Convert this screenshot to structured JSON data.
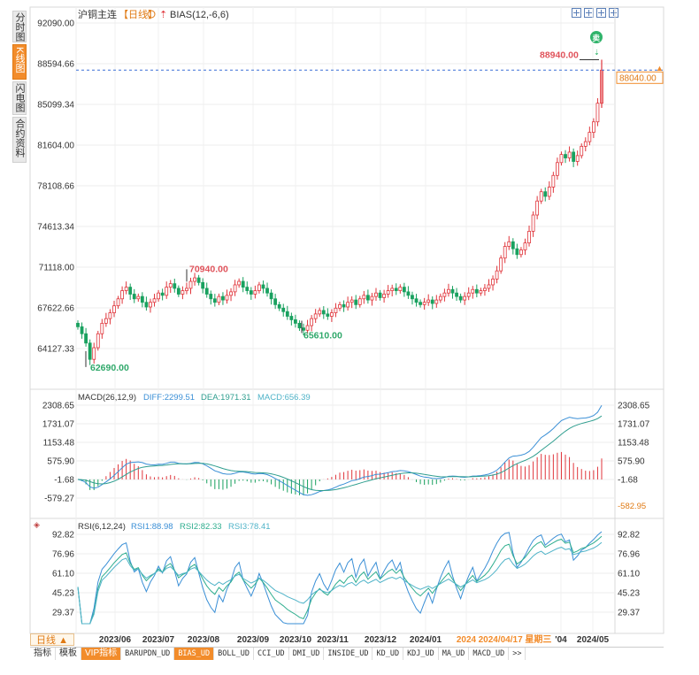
{
  "left_tabs": {
    "time": "分时图",
    "kline": "K线图",
    "flash": "闪电图",
    "contract": "合约资料"
  },
  "header": {
    "symbol": "沪铜主连",
    "period": "【日线】",
    "indicator": "BIAS(12,-6,6)"
  },
  "main_axis": {
    "ticks": [
      "92090.00",
      "88594.66",
      "85099.34",
      "81604.00",
      "78108.66",
      "74613.34",
      "71118.00",
      "67622.66",
      "64127.33"
    ],
    "tick_values": [
      92090,
      88594.66,
      85099.34,
      81604,
      78108.66,
      74613.34,
      71118,
      67622.66,
      64127.33
    ],
    "current_price": "88040.00",
    "current_value": 88040
  },
  "annotations": {
    "high": "88940.00",
    "mid_high": "70940.00",
    "low": "62690.00",
    "mid_low": "65610.00",
    "sell_badge": "卖"
  },
  "macd": {
    "title": "MACD(26,12,9)",
    "diff": "DIFF:2299.51",
    "dea": "DEA:1971.31",
    "macd": "MACD:656.39",
    "ticks": [
      "2308.65",
      "1731.07",
      "1153.48",
      "575.90",
      "-1.68",
      "-579.27"
    ],
    "tick_values": [
      2308.65,
      1731.07,
      1153.48,
      575.9,
      -1.68,
      -579.27
    ],
    "right_ticks": [
      "2308.65",
      "1731.07",
      "1153.48",
      "575.90",
      "-1.68",
      "-579.27"
    ],
    "current": "-582.95"
  },
  "rsi": {
    "title": "RSI(6,12,24)",
    "rsi1": "RSI1:88.98",
    "rsi2": "RSI2:82.33",
    "rsi3": "RSI3:78.41",
    "ticks": [
      "92.82",
      "76.96",
      "61.10",
      "45.23",
      "29.37"
    ],
    "tick_values": [
      92.82,
      76.96,
      61.1,
      45.23,
      29.37
    ]
  },
  "x_axis": {
    "labels": [
      "2023/06",
      "2023/07",
      "2023/08",
      "2023/09",
      "2023/10",
      "2023/11",
      "2023/12",
      "2024/01",
      "2024",
      "2024/04/17 星期三",
      "'04",
      "2024/05"
    ]
  },
  "period_tab": "日线 ▲",
  "bottom_tabs": [
    "指标",
    "模板",
    "VIP指标",
    "BARUPDN_UD",
    "BIAS_UD",
    "BOLL_UD",
    "CCI_UD",
    "DMI_UD",
    "INSIDE_UD",
    "KD_UD",
    "KDJ_UD",
    "MA_UD",
    "MACD_UD",
    ">>"
  ],
  "colors": {
    "up": "#e0353b",
    "down": "#19a15f",
    "diff": "#3a8fd6",
    "dea": "#2f9e8f",
    "rsi1": "#3a8fd6",
    "rsi2": "#2fae8f",
    "rsi3": "#4fb3c8",
    "accent": "#f28c2b"
  },
  "chart_data": {
    "type": "candlestick",
    "title": "沪铜主连 日线",
    "period": "2023/05 - 2024/05",
    "ylim": [
      62690,
      92090
    ],
    "closes": [
      66000,
      65400,
      64600,
      63200,
      64200,
      65400,
      66300,
      66700,
      67200,
      67800,
      68400,
      69100,
      69400,
      68800,
      68400,
      68600,
      68100,
      67700,
      68100,
      68400,
      68900,
      68700,
      69400,
      69700,
      69300,
      68800,
      69100,
      69300,
      69900,
      70200,
      69800,
      69300,
      68800,
      68400,
      68100,
      68600,
      68300,
      68700,
      69000,
      69600,
      69900,
      69400,
      69100,
      68800,
      69100,
      69600,
      69300,
      68900,
      68400,
      67900,
      67600,
      67300,
      66900,
      66600,
      66300,
      65900,
      65700,
      66100,
      66700,
      67100,
      67400,
      67100,
      66900,
      67200,
      67600,
      67900,
      67700,
      68100,
      68300,
      67900,
      68400,
      68700,
      68300,
      68600,
      68900,
      68500,
      68800,
      69100,
      69300,
      69100,
      69400,
      69000,
      68700,
      68400,
      68100,
      67900,
      68100,
      68300,
      68000,
      68300,
      68600,
      68900,
      69200,
      68900,
      68600,
      68300,
      68600,
      68900,
      69200,
      68900,
      69100,
      69300,
      69600,
      70100,
      70800,
      71900,
      72900,
      73300,
      72700,
      72200,
      72600,
      73200,
      74200,
      75600,
      76800,
      77600,
      77200,
      78000,
      79000,
      80100,
      80800,
      80500,
      81000,
      80200,
      80700,
      81500,
      81900,
      82700,
      83600,
      85200,
      88040
    ],
    "highs_marked": {
      "max": 88940,
      "peak_2023": 70940,
      "min": 62690,
      "trough_2023": 65610
    },
    "macd": {
      "diff_last": 2299.51,
      "dea_last": 1971.31,
      "macd_last": 656.39
    },
    "rsi": {
      "rsi1_last": 88.98,
      "rsi2_last": 82.33,
      "rsi3_last": 78.41
    }
  }
}
